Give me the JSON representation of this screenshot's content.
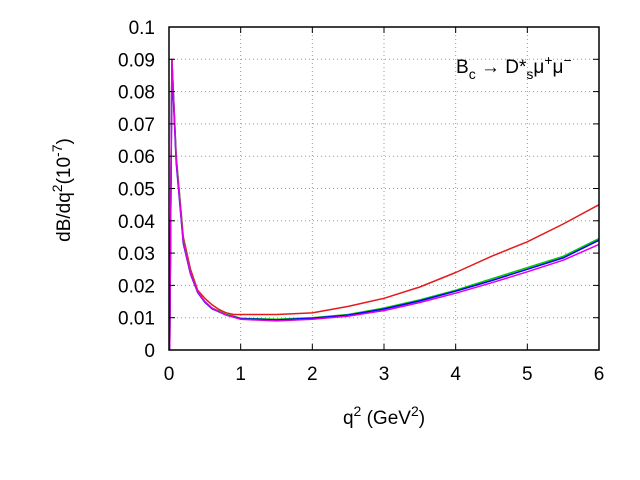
{
  "chart_data": {
    "type": "line",
    "title": "",
    "annotation": {
      "base1": "B",
      "sub1": "c",
      "arrow": " → D*",
      "sub2": "s",
      "mu1": "μ",
      "sup1": "+",
      "mu2": "μ",
      "sup2": "−"
    },
    "xlabel": {
      "base": "q",
      "sup": "2",
      "rest": " (GeV",
      "sup2": "2",
      "end": ")"
    },
    "ylabel": {
      "a": "dB/dq",
      "sup": "2",
      "b": "(10",
      "sup2": "-7",
      "c": ")"
    },
    "xlim": [
      0,
      6
    ],
    "ylim": [
      0,
      0.1
    ],
    "xticks": [
      "0",
      "1",
      "2",
      "3",
      "4",
      "5",
      "6"
    ],
    "yticks": [
      "0",
      "0.01",
      "0.02",
      "0.03",
      "0.04",
      "0.05",
      "0.06",
      "0.07",
      "0.08",
      "0.09",
      "0.1"
    ],
    "grid": true,
    "colors": {
      "red": "#e41a1c",
      "green": "#00cc00",
      "blue": "#0000ff",
      "magenta": "#e000e0"
    },
    "series": [
      {
        "color": "#e41a1c",
        "points": [
          [
            0.01,
            0.0
          ],
          [
            0.04,
            0.09
          ],
          [
            0.1,
            0.06
          ],
          [
            0.2,
            0.035
          ],
          [
            0.3,
            0.025
          ],
          [
            0.4,
            0.0185
          ],
          [
            0.5,
            0.016
          ],
          [
            0.6,
            0.014
          ],
          [
            0.7,
            0.0125
          ],
          [
            0.8,
            0.0115
          ],
          [
            0.9,
            0.011
          ],
          [
            1.0,
            0.011
          ],
          [
            1.5,
            0.011
          ],
          [
            2.0,
            0.0115
          ],
          [
            2.5,
            0.0135
          ],
          [
            3.0,
            0.016
          ],
          [
            3.5,
            0.0195
          ],
          [
            4.0,
            0.024
          ],
          [
            4.5,
            0.029
          ],
          [
            5.0,
            0.0335
          ],
          [
            5.5,
            0.039
          ],
          [
            6.0,
            0.045
          ]
        ]
      },
      {
        "color": "#00cc00",
        "points": [
          [
            0.01,
            0.0
          ],
          [
            0.04,
            0.09
          ],
          [
            0.1,
            0.06
          ],
          [
            0.2,
            0.034
          ],
          [
            0.3,
            0.024
          ],
          [
            0.4,
            0.018
          ],
          [
            0.5,
            0.015
          ],
          [
            0.6,
            0.013
          ],
          [
            0.7,
            0.012
          ],
          [
            0.8,
            0.011
          ],
          [
            0.9,
            0.0105
          ],
          [
            1.0,
            0.0098
          ],
          [
            1.5,
            0.0095
          ],
          [
            2.0,
            0.01
          ],
          [
            2.5,
            0.011
          ],
          [
            3.0,
            0.013
          ],
          [
            3.5,
            0.0155
          ],
          [
            4.0,
            0.0185
          ],
          [
            4.5,
            0.022
          ],
          [
            5.0,
            0.0255
          ],
          [
            5.5,
            0.029
          ],
          [
            6.0,
            0.0345
          ]
        ]
      },
      {
        "color": "#0000ff",
        "points": [
          [
            0.01,
            0.0
          ],
          [
            0.04,
            0.088
          ],
          [
            0.1,
            0.058
          ],
          [
            0.2,
            0.033
          ],
          [
            0.3,
            0.0235
          ],
          [
            0.4,
            0.0178
          ],
          [
            0.5,
            0.0148
          ],
          [
            0.6,
            0.0128
          ],
          [
            0.7,
            0.0118
          ],
          [
            0.8,
            0.0108
          ],
          [
            0.9,
            0.0103
          ],
          [
            1.0,
            0.0097
          ],
          [
            1.5,
            0.0093
          ],
          [
            2.0,
            0.0098
          ],
          [
            2.5,
            0.0108
          ],
          [
            3.0,
            0.0127
          ],
          [
            3.5,
            0.0152
          ],
          [
            4.0,
            0.0182
          ],
          [
            4.5,
            0.0215
          ],
          [
            5.0,
            0.025
          ],
          [
            5.5,
            0.0285
          ],
          [
            6.0,
            0.034
          ]
        ]
      },
      {
        "color": "#e000e0",
        "points": [
          [
            0.01,
            0.0
          ],
          [
            0.04,
            0.09
          ],
          [
            0.1,
            0.059
          ],
          [
            0.2,
            0.0335
          ],
          [
            0.3,
            0.0238
          ],
          [
            0.4,
            0.018
          ],
          [
            0.5,
            0.015
          ],
          [
            0.6,
            0.013
          ],
          [
            0.7,
            0.0118
          ],
          [
            0.8,
            0.0108
          ],
          [
            0.9,
            0.0102
          ],
          [
            1.0,
            0.0095
          ],
          [
            1.5,
            0.009
          ],
          [
            2.0,
            0.0095
          ],
          [
            2.5,
            0.0105
          ],
          [
            3.0,
            0.0122
          ],
          [
            3.5,
            0.0147
          ],
          [
            4.0,
            0.0176
          ],
          [
            4.5,
            0.0208
          ],
          [
            5.0,
            0.0242
          ],
          [
            5.5,
            0.0278
          ],
          [
            6.0,
            0.0327
          ]
        ]
      }
    ]
  }
}
